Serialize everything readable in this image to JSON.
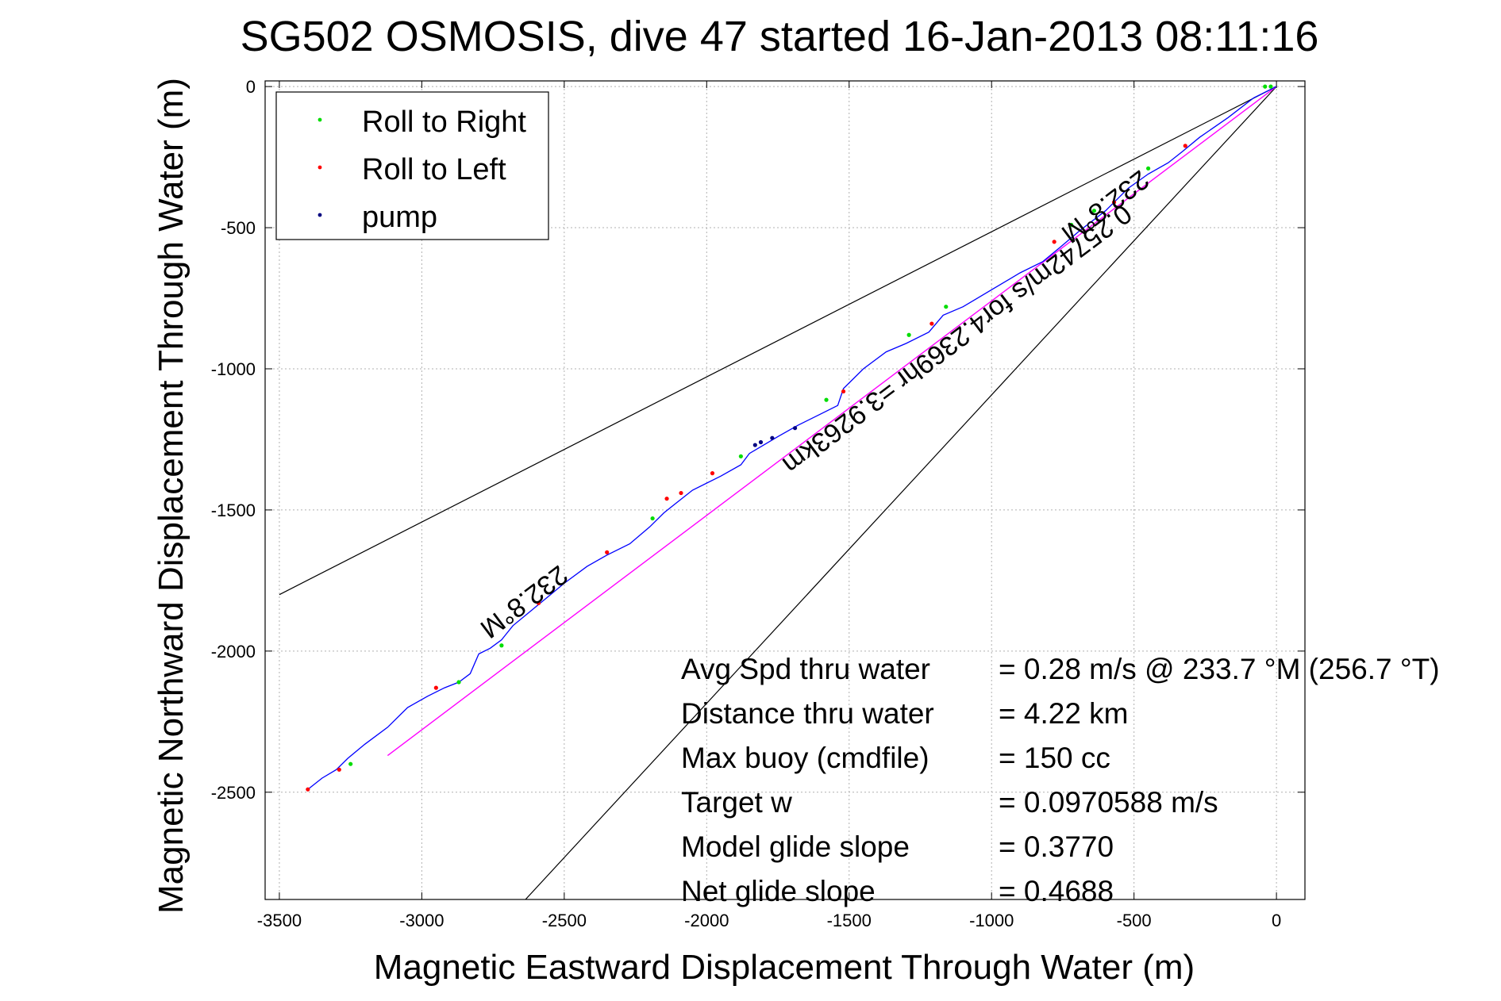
{
  "chart_data": {
    "type": "scatter",
    "title": "SG502 OSMOSIS, dive 47 started 16-Jan-2013 08:11:16",
    "xlabel": "Magnetic Eastward Displacement Through Water (m)",
    "ylabel": "Magnetic Northward Displacement Through Water (m)",
    "xlim": [
      -3550,
      100
    ],
    "ylim": [
      -2880,
      20
    ],
    "x_ticks": [
      -3500,
      -3000,
      -2500,
      -2000,
      -1500,
      -1000,
      -500,
      0
    ],
    "x_tick_labels": [
      "-3500",
      "-3000",
      "-2500",
      "-2000",
      "-1500",
      "-1000",
      "-500",
      "0"
    ],
    "y_ticks": [
      0,
      -500,
      -1000,
      -1500,
      -2000,
      -2500
    ],
    "y_tick_labels": [
      "0",
      "-500",
      "-1000",
      "-1500",
      "-2000",
      "-2500"
    ],
    "grid": true,
    "legend_position": "top-left",
    "legend": [
      {
        "label": "Roll to Right",
        "color": "#00dd00"
      },
      {
        "label": "Roll to Left",
        "color": "#ff0000"
      },
      {
        "label": "pump",
        "color": "#000080"
      }
    ],
    "track": {
      "color": "#0000ff",
      "x": [
        0,
        -80,
        -170,
        -270,
        -330,
        -380,
        -450,
        -520,
        -600,
        -690,
        -760,
        -820,
        -900,
        -1000,
        -1100,
        -1170,
        -1220,
        -1300,
        -1370,
        -1450,
        -1520,
        -1540,
        -1600,
        -1680,
        -1750,
        -1800,
        -1850,
        -1880,
        -1950,
        -2050,
        -2100,
        -2150,
        -2200,
        -2270,
        -2350,
        -2420,
        -2500,
        -2560,
        -2620,
        -2680,
        -2720,
        -2760,
        -2800,
        -2830,
        -2870,
        -2920,
        -2980,
        -3050,
        -3120,
        -3200,
        -3260,
        -3300,
        -3350,
        -3400
      ],
      "y": [
        0,
        -40,
        -110,
        -180,
        -230,
        -270,
        -310,
        -360,
        -440,
        -510,
        -570,
        -620,
        -660,
        -720,
        -780,
        -810,
        -870,
        -910,
        -940,
        -1000,
        -1070,
        -1130,
        -1160,
        -1200,
        -1240,
        -1270,
        -1300,
        -1340,
        -1380,
        -1430,
        -1470,
        -1510,
        -1560,
        -1620,
        -1660,
        -1700,
        -1760,
        -1810,
        -1860,
        -1910,
        -1960,
        -1990,
        -2010,
        -2080,
        -2110,
        -2130,
        -2160,
        -2200,
        -2270,
        -2330,
        -2380,
        -2420,
        -2450,
        -2490
      ]
    },
    "roll_right": {
      "x": [
        -20,
        -40,
        -450,
        -640,
        -720,
        -1160,
        -1290,
        -1580,
        -1880,
        -2190,
        -2720,
        -2870,
        -3250
      ],
      "y": [
        0,
        0,
        -290,
        -440,
        -490,
        -780,
        -880,
        -1110,
        -1310,
        -1530,
        -1980,
        -2110,
        -2400
      ]
    },
    "roll_left": {
      "x": [
        -320,
        -570,
        -780,
        -1210,
        -1520,
        -1980,
        -2090,
        -2140,
        -2350,
        -2590,
        -2950,
        -3290,
        -3400
      ],
      "y": [
        -210,
        -410,
        -550,
        -840,
        -1080,
        -1370,
        -1440,
        -1460,
        -1650,
        -1830,
        -2130,
        -2420,
        -2490
      ]
    },
    "pump": {
      "x": [
        -1690,
        -1770,
        -1810,
        -1830
      ],
      "y": [
        -1210,
        -1245,
        -1260,
        -1270
      ]
    },
    "heading_line": {
      "color": "#ff00ff",
      "x": [
        0,
        -3120
      ],
      "y": [
        0,
        -2370
      ]
    },
    "cone_lines": {
      "color": "#000000",
      "line1": {
        "x": [
          0,
          -3500
        ],
        "y": [
          0,
          -1800
        ]
      },
      "line2": {
        "x": [
          0,
          -2700
        ],
        "y": [
          0,
          -2950
        ]
      }
    },
    "annotations": [
      {
        "text": "232.8°M",
        "x": -2660,
        "y": -1800,
        "rotation": 143
      },
      {
        "text": "232.8°M",
        "x": -620,
        "y": -400,
        "rotation": 143
      },
      {
        "text": "0.25742m/s for4.2369hr =3.9263km",
        "x": -1140,
        "y": -870,
        "rotation": 143
      }
    ],
    "stats": [
      {
        "label": "Avg Spd thru water",
        "value": "=  0.28 m/s @ 233.7 °M (256.7 °T)"
      },
      {
        "label": "Distance thru water",
        "value": "=  4.22 km"
      },
      {
        "label": "Max buoy (cmdfile)",
        "value": "= 150 cc"
      },
      {
        "label": "Target w",
        "value": "= 0.0970588 m/s"
      },
      {
        "label": "Model glide slope",
        "value": "= 0.3770"
      },
      {
        "label": "Net glide slope",
        "value": "= 0.4688"
      }
    ]
  }
}
